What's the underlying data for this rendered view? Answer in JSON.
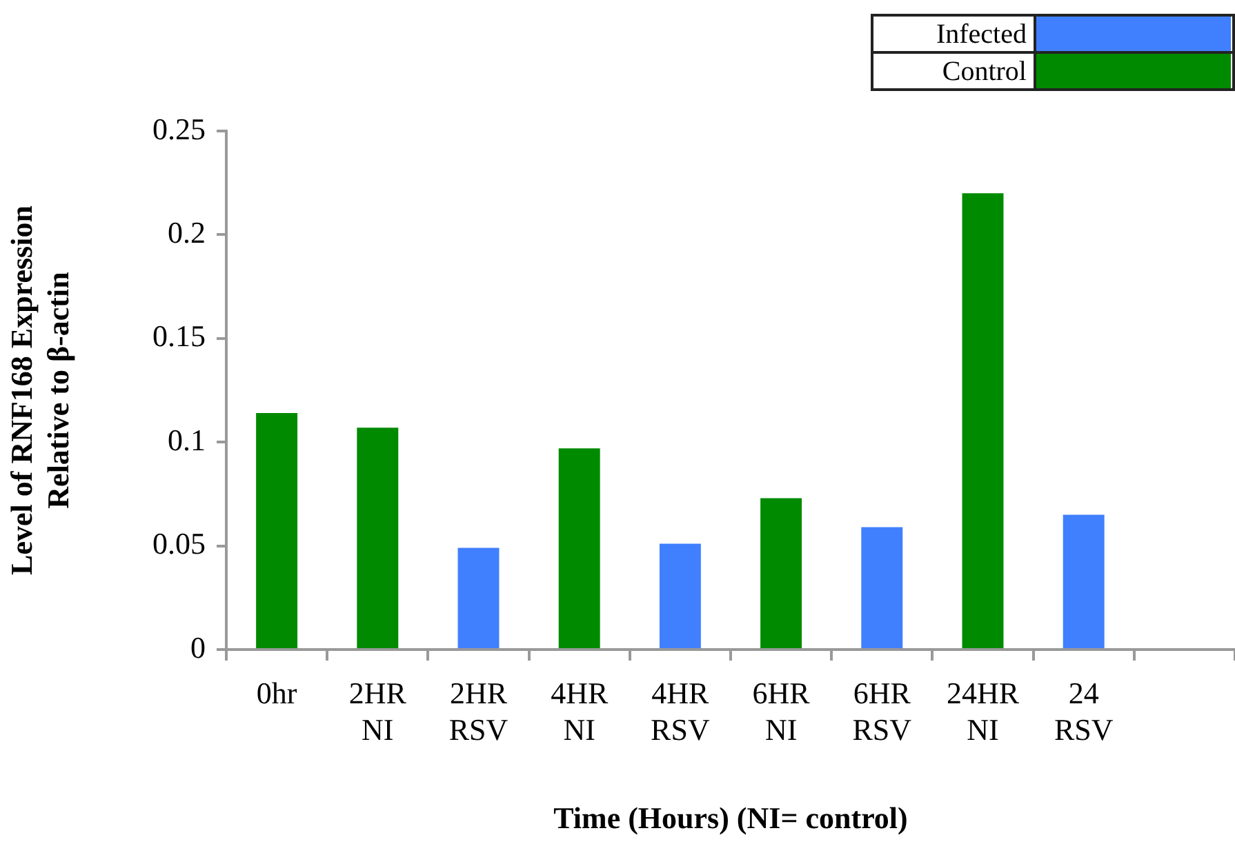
{
  "chart_data": {
    "type": "bar",
    "xlabel": "Time (Hours) (NI= control)",
    "ylabel": "Level of RNF168 Expression\nRelative to β-actin",
    "categories": [
      "0hr",
      "2HR NI",
      "2HR RSV",
      "4HR NI",
      "4HR RSV",
      "6HR NI",
      "6HR RSV",
      "24HR NI",
      "24 RSV",
      null
    ],
    "series": [
      {
        "name": "Infected",
        "color": "#4080ff",
        "values": [
          null,
          null,
          0.049,
          null,
          0.051,
          null,
          0.059,
          null,
          0.065,
          null
        ]
      },
      {
        "name": "Control",
        "color": "#008a00",
        "values": [
          0.114,
          0.107,
          null,
          0.097,
          null,
          0.073,
          null,
          0.22,
          null,
          null
        ]
      }
    ],
    "ylim": [
      0,
      0.25
    ],
    "yticks": [
      0,
      0.05,
      0.1,
      0.15,
      0.2,
      0.25
    ],
    "legend": "top right"
  }
}
